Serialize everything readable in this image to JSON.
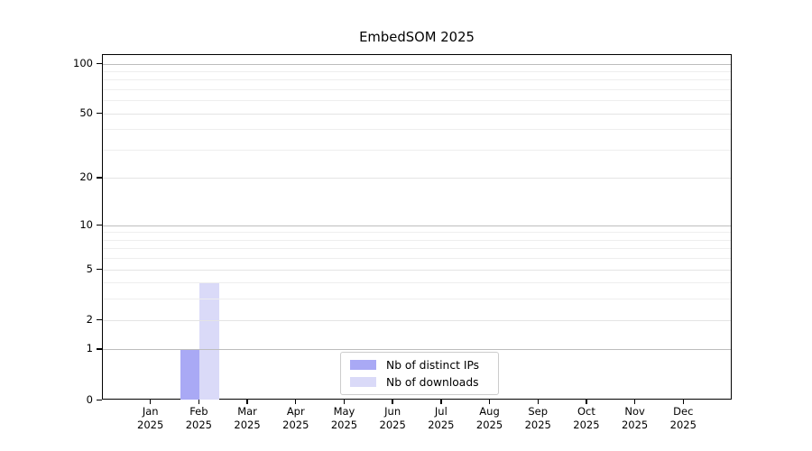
{
  "title": "EmbedSOM 2025",
  "chart_data": {
    "type": "bar",
    "title": "EmbedSOM 2025",
    "categories": [
      "Jan",
      "Feb",
      "Mar",
      "Apr",
      "May",
      "Jun",
      "Jul",
      "Aug",
      "Sep",
      "Oct",
      "Nov",
      "Dec"
    ],
    "category_year": "2025",
    "series": [
      {
        "name": "Nb of distinct IPs",
        "color": "#a9a9f5",
        "values": [
          0,
          1,
          0,
          0,
          0,
          0,
          0,
          0,
          0,
          0,
          0,
          0
        ]
      },
      {
        "name": "Nb of downloads",
        "color": "#dadaf8",
        "values": [
          0,
          4,
          0,
          0,
          0,
          0,
          0,
          0,
          0,
          0,
          0,
          0
        ]
      }
    ],
    "xlabel": "",
    "ylabel": "",
    "y_axis": {
      "scale": "log1p",
      "ticks": [
        0,
        1,
        2,
        5,
        10,
        20,
        50,
        100
      ],
      "minor_gridlines": [
        3,
        4,
        6,
        7,
        8,
        9,
        30,
        40,
        60,
        70,
        80,
        90
      ],
      "emphasized_gridlines": [
        1,
        10,
        100
      ],
      "ylim": [
        0,
        113
      ]
    },
    "grid": "horizontal",
    "legend": {
      "position": "lower center",
      "entries": [
        "Nb of distinct IPs",
        "Nb of downloads"
      ]
    },
    "colors": {
      "grid_major": "#bdbdbd",
      "grid_regular": "#e4e4e4",
      "grid_minor": "#eeeeee",
      "axis": "#000000",
      "background": "#ffffff"
    }
  }
}
